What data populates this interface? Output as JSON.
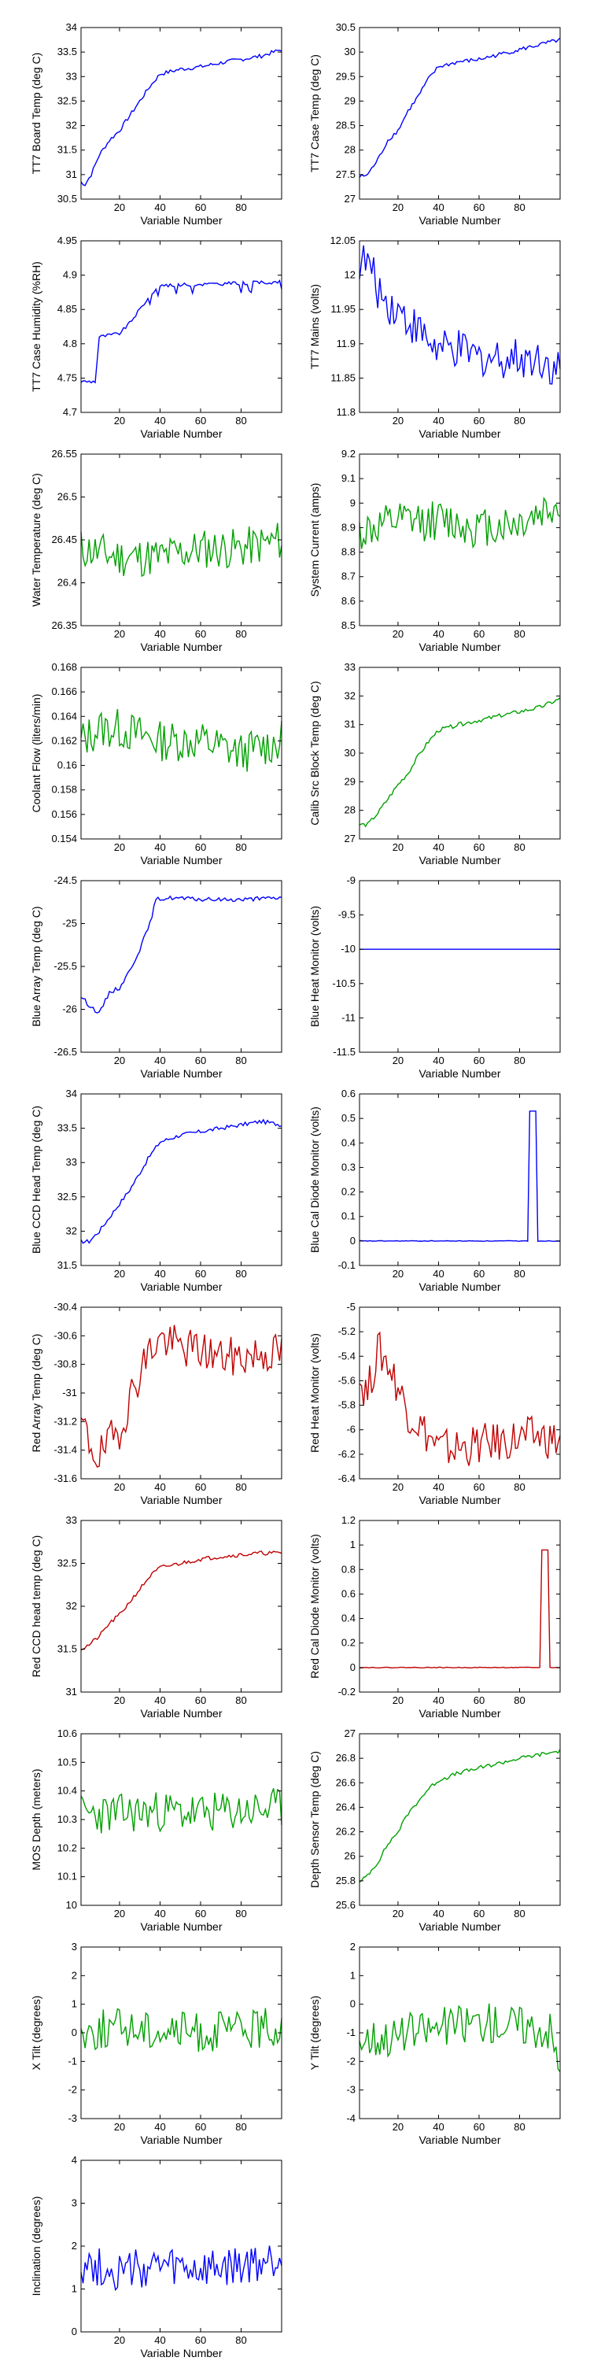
{
  "figure_title": "",
  "colors": {
    "blue": "#0000ff",
    "green": "#00a000",
    "red": "#c00000"
  },
  "chart_data": [
    {
      "type": "line",
      "ylabel": "TT7 Board Temp (deg C)",
      "xlabel": "Variable Number",
      "xlim": [
        1,
        100
      ],
      "ylim": [
        30.5,
        34
      ],
      "xticks": [
        20,
        40,
        60,
        80
      ],
      "yticks": [
        "30.5",
        "31",
        "31.5",
        "32",
        "32.5",
        "33",
        "33.5",
        "34"
      ],
      "color": "blue",
      "pattern": "rise",
      "series": [
        {
          "x": [
            1,
            3,
            6,
            10,
            15,
            20,
            25,
            30,
            35,
            40,
            50,
            60,
            70,
            80,
            90,
            100
          ],
          "y": [
            30.85,
            30.8,
            31.0,
            31.4,
            31.7,
            31.9,
            32.2,
            32.5,
            32.8,
            33.05,
            33.15,
            33.2,
            33.28,
            33.35,
            33.42,
            33.55
          ]
        }
      ]
    },
    {
      "type": "line",
      "ylabel": "TT7 Case Temp (deg C)",
      "xlabel": "Variable Number",
      "xlim": [
        1,
        100
      ],
      "ylim": [
        27,
        30.5
      ],
      "xticks": [
        20,
        40,
        60,
        80
      ],
      "yticks": [
        "27",
        "27.5",
        "28",
        "28.5",
        "29",
        "29.5",
        "30",
        "30.5"
      ],
      "color": "blue",
      "pattern": "rise",
      "series": [
        {
          "x": [
            1,
            5,
            10,
            15,
            20,
            25,
            30,
            35,
            40,
            50,
            60,
            70,
            80,
            90,
            100
          ],
          "y": [
            27.45,
            27.5,
            27.8,
            28.2,
            28.4,
            28.8,
            29.1,
            29.45,
            29.7,
            29.8,
            29.85,
            29.95,
            30.05,
            30.15,
            30.25
          ]
        }
      ]
    },
    {
      "type": "line",
      "ylabel": "TT7 Case Humidity (%RH)",
      "xlabel": "Variable Number",
      "xlim": [
        1,
        100
      ],
      "ylim": [
        4.7,
        4.95
      ],
      "xticks": [
        20,
        40,
        60,
        80
      ],
      "yticks": [
        "4.7",
        "4.75",
        "4.8",
        "4.85",
        "4.9",
        "4.95"
      ],
      "color": "blue",
      "pattern": "step",
      "series": [
        {
          "x": [
            1,
            8,
            10,
            20,
            25,
            30,
            35,
            40,
            100
          ],
          "y": [
            4.745,
            4.745,
            4.81,
            4.815,
            4.83,
            4.85,
            4.87,
            4.885,
            4.89
          ]
        }
      ]
    },
    {
      "type": "line",
      "ylabel": "TT7 Mains  (volts)",
      "xlabel": "Variable Number",
      "xlim": [
        1,
        100
      ],
      "ylim": [
        11.8,
        12.05
      ],
      "xticks": [
        20,
        40,
        60,
        80
      ],
      "yticks": [
        "11.8",
        "11.85",
        "11.9",
        "11.95",
        "12",
        "12.05"
      ],
      "color": "blue",
      "pattern": "noisy",
      "series": [
        {
          "x": [
            1,
            5,
            10,
            15,
            20,
            30,
            40,
            50,
            60,
            70,
            80,
            90,
            100
          ],
          "y": [
            12.02,
            12.02,
            11.98,
            11.96,
            11.95,
            11.92,
            11.89,
            11.89,
            11.88,
            11.88,
            11.88,
            11.88,
            11.86
          ]
        }
      ]
    },
    {
      "type": "line",
      "ylabel": "Water Temperature (deg C)",
      "xlabel": "Variable Number",
      "xlim": [
        1,
        100
      ],
      "ylim": [
        26.35,
        26.55
      ],
      "xticks": [
        20,
        40,
        60,
        80
      ],
      "yticks": [
        "26.35",
        "26.4",
        "26.45",
        "26.5",
        "26.55"
      ],
      "color": "green",
      "pattern": "noisy",
      "series": [
        {
          "x": [
            1,
            20,
            40,
            60,
            80,
            100
          ],
          "y": [
            26.44,
            26.43,
            26.43,
            26.44,
            26.44,
            26.45
          ]
        }
      ]
    },
    {
      "type": "line",
      "ylabel": "System Current (amps)",
      "xlabel": "Variable Number",
      "xlim": [
        1,
        100
      ],
      "ylim": [
        8.5,
        9.2
      ],
      "xticks": [
        20,
        40,
        60,
        80
      ],
      "yticks": [
        "8.5",
        "8.6",
        "8.7",
        "8.8",
        "8.9",
        "9",
        "9.1",
        "9.2"
      ],
      "color": "green",
      "pattern": "noisy",
      "series": [
        {
          "x": [
            1,
            20,
            40,
            60,
            80,
            100
          ],
          "y": [
            8.88,
            8.92,
            8.93,
            8.9,
            8.92,
            9.0
          ]
        }
      ]
    },
    {
      "type": "line",
      "ylabel": "Coolant Flow (liters/min)",
      "xlabel": "Variable Number",
      "xlim": [
        1,
        100
      ],
      "ylim": [
        0.154,
        0.168
      ],
      "xticks": [
        20,
        40,
        60,
        80
      ],
      "yticks": [
        "0.154",
        "0.156",
        "0.158",
        "0.16",
        "0.162",
        "0.164",
        "0.166",
        "0.168"
      ],
      "color": "green",
      "pattern": "noisy",
      "series": [
        {
          "x": [
            1,
            10,
            20,
            40,
            60,
            80,
            100
          ],
          "y": [
            0.162,
            0.163,
            0.163,
            0.162,
            0.162,
            0.161,
            0.162
          ]
        }
      ]
    },
    {
      "type": "line",
      "ylabel": "Calib Src Block Temp (deg C)",
      "xlabel": "Variable Number",
      "xlim": [
        1,
        100
      ],
      "ylim": [
        27,
        33
      ],
      "xticks": [
        20,
        40,
        60,
        80
      ],
      "yticks": [
        "27",
        "28",
        "29",
        "30",
        "31",
        "32",
        "33"
      ],
      "color": "green",
      "pattern": "rise",
      "series": [
        {
          "x": [
            1,
            5,
            10,
            15,
            20,
            25,
            30,
            35,
            40,
            50,
            60,
            70,
            80,
            90,
            100
          ],
          "y": [
            27.5,
            27.5,
            27.9,
            28.4,
            28.9,
            29.3,
            29.9,
            30.4,
            30.8,
            31.0,
            31.15,
            31.3,
            31.45,
            31.6,
            31.9
          ]
        }
      ]
    },
    {
      "type": "line",
      "ylabel": "Blue Array Temp (deg C)",
      "xlabel": "Variable Number",
      "xlim": [
        1,
        100
      ],
      "ylim": [
        -26.5,
        -24.5
      ],
      "xticks": [
        20,
        40,
        60,
        80
      ],
      "yticks": [
        "-26.5",
        "-26",
        "-25.5",
        "-25",
        "-24.5"
      ],
      "color": "blue",
      "pattern": "rise",
      "series": [
        {
          "x": [
            1,
            5,
            10,
            15,
            20,
            25,
            30,
            35,
            38,
            45,
            60,
            80,
            100
          ],
          "y": [
            -25.85,
            -25.95,
            -26.05,
            -25.8,
            -25.75,
            -25.55,
            -25.3,
            -25.0,
            -24.72,
            -24.7,
            -24.72,
            -24.72,
            -24.7
          ]
        }
      ]
    },
    {
      "type": "line",
      "ylabel": "Blue Heat Monitor (volts)",
      "xlabel": "Variable Number",
      "xlim": [
        1,
        100
      ],
      "ylim": [
        -11.5,
        -9
      ],
      "xticks": [
        20,
        40,
        60,
        80
      ],
      "yticks": [
        "-11.5",
        "-11",
        "-10.5",
        "-10",
        "-9.5",
        "-9"
      ],
      "color": "blue",
      "pattern": "flat",
      "series": [
        {
          "x": [
            1,
            100
          ],
          "y": [
            -10,
            -10
          ]
        }
      ]
    },
    {
      "type": "line",
      "ylabel": "Blue CCD Head Temp (deg C)",
      "xlabel": "Variable Number",
      "xlim": [
        1,
        100
      ],
      "ylim": [
        31.5,
        34
      ],
      "xticks": [
        20,
        40,
        60,
        80
      ],
      "yticks": [
        "31.5",
        "32",
        "32.5",
        "33",
        "33.5",
        "34"
      ],
      "color": "blue",
      "pattern": "rise",
      "series": [
        {
          "x": [
            1,
            5,
            10,
            15,
            20,
            25,
            30,
            35,
            40,
            50,
            60,
            70,
            80,
            90,
            100
          ],
          "y": [
            31.85,
            31.85,
            32.0,
            32.2,
            32.4,
            32.6,
            32.85,
            33.1,
            33.3,
            33.4,
            33.45,
            33.5,
            33.55,
            33.6,
            33.55
          ]
        }
      ]
    },
    {
      "type": "line",
      "ylabel": "Blue Cal Diode Monitor (volts)",
      "xlabel": "Variable Number",
      "xlim": [
        1,
        100
      ],
      "ylim": [
        -0.1,
        0.6
      ],
      "xticks": [
        20,
        40,
        60,
        80
      ],
      "yticks": [
        "-0.1",
        "0",
        "0.1",
        "0.2",
        "0.3",
        "0.4",
        "0.5",
        "0.6"
      ],
      "color": "blue",
      "pattern": "spike",
      "series": [
        {
          "x": [
            1,
            84,
            85,
            88,
            89,
            100
          ],
          "y": [
            0,
            0,
            0.53,
            0.53,
            0,
            0
          ]
        }
      ]
    },
    {
      "type": "line",
      "ylabel": "Red Array Temp (deg C)",
      "xlabel": "Variable Number",
      "xlim": [
        1,
        100
      ],
      "ylim": [
        -31.6,
        -30.4
      ],
      "xticks": [
        20,
        40,
        60,
        80
      ],
      "yticks": [
        "-31.6",
        "-31.4",
        "-31.2",
        "-31",
        "-30.8",
        "-30.6",
        "-30.4"
      ],
      "color": "red",
      "pattern": "noisy",
      "series": [
        {
          "x": [
            1,
            5,
            10,
            15,
            20,
            25,
            30,
            35,
            40,
            50,
            60,
            70,
            80,
            90,
            100
          ],
          "y": [
            -31.2,
            -31.35,
            -31.45,
            -31.35,
            -31.25,
            -31.05,
            -30.85,
            -30.7,
            -30.62,
            -30.68,
            -30.7,
            -30.75,
            -30.75,
            -30.72,
            -30.72
          ]
        }
      ]
    },
    {
      "type": "line",
      "ylabel": "Red Heat Monitor (volts)",
      "xlabel": "Variable Number",
      "xlim": [
        1,
        100
      ],
      "ylim": [
        -6.4,
        -5
      ],
      "xticks": [
        20,
        40,
        60,
        80
      ],
      "yticks": [
        "-6.4",
        "-6.2",
        "-6",
        "-5.8",
        "-5.6",
        "-5.4",
        "-5.2",
        "-5"
      ],
      "color": "red",
      "pattern": "noisy",
      "series": [
        {
          "x": [
            1,
            5,
            10,
            15,
            20,
            25,
            30,
            35,
            40,
            50,
            60,
            70,
            80,
            90,
            100
          ],
          "y": [
            -5.6,
            -5.7,
            -5.35,
            -5.45,
            -5.65,
            -5.85,
            -5.95,
            -6.05,
            -6.15,
            -6.15,
            -6.12,
            -6.1,
            -6.07,
            -6.05,
            -6.1
          ]
        }
      ]
    },
    {
      "type": "line",
      "ylabel": "Red CCD head temp (deg C)",
      "xlabel": "Variable Number",
      "xlim": [
        1,
        100
      ],
      "ylim": [
        31,
        33
      ],
      "xticks": [
        20,
        40,
        60,
        80
      ],
      "yticks": [
        "31",
        "31.5",
        "32",
        "32.5",
        "33"
      ],
      "color": "red",
      "pattern": "rise",
      "series": [
        {
          "x": [
            1,
            5,
            10,
            15,
            20,
            25,
            30,
            35,
            40,
            50,
            60,
            70,
            80,
            90,
            100
          ],
          "y": [
            31.5,
            31.55,
            31.65,
            31.8,
            31.9,
            32.05,
            32.2,
            32.35,
            32.45,
            32.5,
            32.55,
            32.58,
            32.6,
            32.62,
            32.62
          ]
        }
      ]
    },
    {
      "type": "line",
      "ylabel": "Red Cal Diode Monitor (volts)",
      "xlabel": "Variable Number",
      "xlim": [
        1,
        100
      ],
      "ylim": [
        -0.2,
        1.2
      ],
      "xticks": [
        20,
        40,
        60,
        80
      ],
      "yticks": [
        "-0.2",
        "0",
        "0.2",
        "0.4",
        "0.6",
        "0.8",
        "1",
        "1.2"
      ],
      "color": "red",
      "pattern": "spike",
      "series": [
        {
          "x": [
            1,
            90,
            91,
            94,
            95,
            100
          ],
          "y": [
            0,
            0,
            0.96,
            0.96,
            0,
            0
          ]
        }
      ]
    },
    {
      "type": "line",
      "ylabel": "MOS Depth  (meters)",
      "xlabel": "Variable Number",
      "xlim": [
        1,
        100
      ],
      "ylim": [
        10,
        10.6
      ],
      "xticks": [
        20,
        40,
        60,
        80
      ],
      "yticks": [
        "10",
        "10.1",
        "10.2",
        "10.3",
        "10.4",
        "10.5",
        "10.6"
      ],
      "color": "green",
      "pattern": "noisy",
      "series": [
        {
          "x": [
            1,
            20,
            40,
            60,
            80,
            100
          ],
          "y": [
            10.32,
            10.32,
            10.33,
            10.32,
            10.33,
            10.34
          ]
        }
      ]
    },
    {
      "type": "line",
      "ylabel": "Depth Sensor Temp (deg C)",
      "xlabel": "Variable Number",
      "xlim": [
        1,
        100
      ],
      "ylim": [
        25.6,
        27
      ],
      "xticks": [
        20,
        40,
        60,
        80
      ],
      "yticks": [
        "25.6",
        "25.8",
        "26",
        "26.2",
        "26.4",
        "26.6",
        "26.8",
        "27"
      ],
      "color": "green",
      "pattern": "rise",
      "series": [
        {
          "x": [
            1,
            5,
            10,
            15,
            20,
            25,
            30,
            35,
            40,
            50,
            60,
            70,
            80,
            90,
            100
          ],
          "y": [
            25.78,
            25.85,
            25.95,
            26.1,
            26.2,
            26.35,
            26.45,
            26.55,
            26.62,
            26.68,
            26.72,
            26.76,
            26.8,
            26.83,
            26.86
          ]
        }
      ]
    },
    {
      "type": "line",
      "ylabel": "X Tilt  (degrees)",
      "xlabel": "Variable Number",
      "xlim": [
        1,
        100
      ],
      "ylim": [
        -3,
        3
      ],
      "xticks": [
        20,
        40,
        60,
        80
      ],
      "yticks": [
        "-3",
        "-2",
        "-1",
        "0",
        "1",
        "2",
        "3"
      ],
      "color": "green",
      "pattern": "noisy",
      "series": [
        {
          "x": [
            1,
            20,
            40,
            60,
            80,
            100
          ],
          "y": [
            0.0,
            0.2,
            0.1,
            0.0,
            0.1,
            0.2
          ]
        }
      ]
    },
    {
      "type": "line",
      "ylabel": "Y Tilt  (degrees)",
      "xlabel": "Variable Number",
      "xlim": [
        1,
        100
      ],
      "ylim": [
        -4,
        2
      ],
      "xticks": [
        20,
        40,
        60,
        80
      ],
      "yticks": [
        "-4",
        "-3",
        "-2",
        "-1",
        "0",
        "1",
        "2"
      ],
      "color": "green",
      "pattern": "noisy",
      "series": [
        {
          "x": [
            1,
            20,
            40,
            60,
            80,
            95,
            100
          ],
          "y": [
            -1.2,
            -1.1,
            -0.8,
            -0.6,
            -0.7,
            -0.9,
            -2.4
          ]
        }
      ]
    },
    {
      "type": "line",
      "ylabel": "Inclination  (degrees)",
      "xlabel": "Variable Number",
      "xlim": [
        1,
        100
      ],
      "ylim": [
        0,
        4
      ],
      "xticks": [
        20,
        40,
        60,
        80
      ],
      "yticks": [
        "0",
        "1",
        "2",
        "3",
        "4"
      ],
      "color": "blue",
      "pattern": "noisy",
      "series": [
        {
          "x": [
            1,
            20,
            40,
            60,
            80,
            100
          ],
          "y": [
            1.6,
            1.4,
            1.5,
            1.4,
            1.5,
            1.7
          ]
        }
      ]
    }
  ]
}
